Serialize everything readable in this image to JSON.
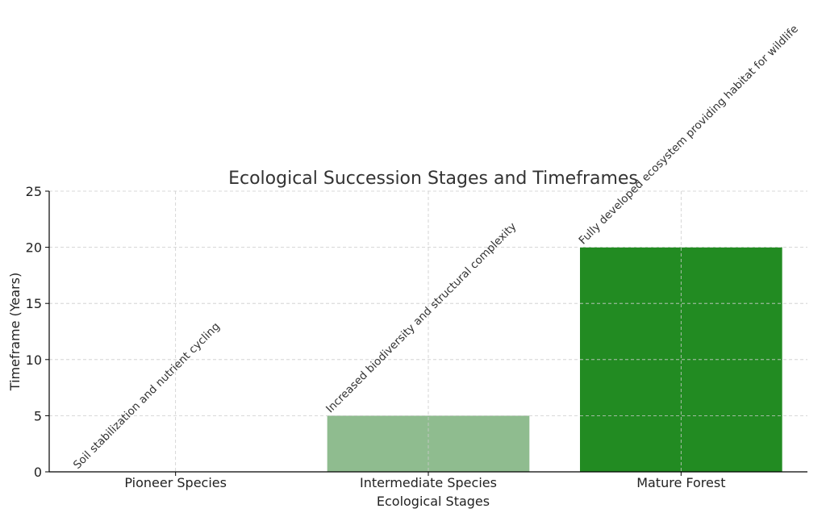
{
  "chart_data": {
    "type": "bar",
    "title": "Ecological Succession Stages and Timeframes",
    "xlabel": "Ecological Stages",
    "ylabel": "Timeframe (Years)",
    "categories": [
      "Pioneer Species",
      "Intermediate Species",
      "Mature Forest"
    ],
    "values": [
      0,
      5,
      20
    ],
    "bar_colors": [
      "#c8dcc8",
      "#8fbc8f",
      "#228b22"
    ],
    "annotations": [
      "Soil stabilization and nutrient cycling",
      "Increased biodiversity and structural complexity",
      "Fully developed ecosystem providing habitat for wildlife"
    ],
    "ylim": [
      0,
      25
    ],
    "yticks": [
      0,
      5,
      10,
      15,
      20,
      25
    ],
    "grid": true
  }
}
